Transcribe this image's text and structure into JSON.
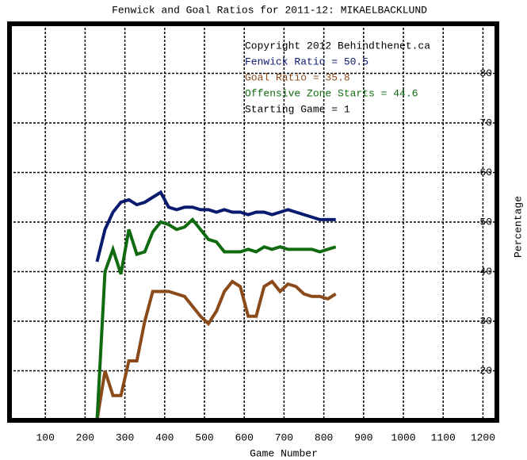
{
  "chart_data": {
    "type": "line",
    "title": "Fenwick and Goal Ratios for 2011-12: MIKAELBACKLUND",
    "x_label": "Game Number",
    "y_label": "Percentage",
    "annotations": [
      "Copyright 2012 Behindthenet.ca",
      "Starting Game = 1"
    ],
    "x": [
      230,
      250,
      270,
      290,
      310,
      330,
      350,
      370,
      390,
      410,
      430,
      450,
      470,
      490,
      510,
      530,
      550,
      570,
      590,
      610,
      630,
      650,
      670,
      690,
      710,
      730,
      750,
      770,
      790,
      810,
      830
    ],
    "series": [
      {
        "name": "Fenwick Ratio = 50.5",
        "color": "#0a1a6e",
        "values": [
          42,
          48.5,
          52,
          54,
          54.5,
          53.5,
          54,
          55,
          56,
          53,
          52.5,
          53,
          53,
          52.5,
          52.5,
          52,
          52.5,
          52,
          52,
          51.5,
          52,
          52,
          51.5,
          52,
          52.5,
          52,
          51.5,
          51,
          50.5,
          50.5,
          50.5
        ]
      },
      {
        "name": "Goal Ratio = 35.8",
        "color": "#8b4a1a",
        "values": [
          10,
          20,
          15,
          15,
          22,
          22,
          30,
          36,
          36,
          36,
          35.5,
          35,
          33,
          31,
          29.5,
          32,
          36,
          38,
          37,
          31,
          31,
          37,
          38,
          36,
          37.5,
          37,
          35.5,
          35,
          35,
          34.5,
          35.5
        ]
      },
      {
        "name": "Offensive Zone Starts = 44.6",
        "color": "#106b10",
        "values": [
          10,
          40,
          44.5,
          39.5,
          48.5,
          43.5,
          44,
          48,
          50,
          49.5,
          48.5,
          49,
          50.5,
          48.5,
          46.5,
          46,
          44,
          44,
          44,
          44.5,
          44,
          45,
          44.5,
          45,
          44.5,
          44.5,
          44.5,
          44.5,
          44,
          44.5,
          45
        ]
      }
    ],
    "xlim": [
      10,
      1235
    ],
    "ylim": [
      10,
      90
    ],
    "xticks": [
      100,
      200,
      300,
      400,
      500,
      600,
      700,
      800,
      900,
      1000,
      1100,
      1200
    ],
    "yticks": [
      20,
      30,
      40,
      50,
      60,
      70,
      80
    ],
    "grid": true
  }
}
